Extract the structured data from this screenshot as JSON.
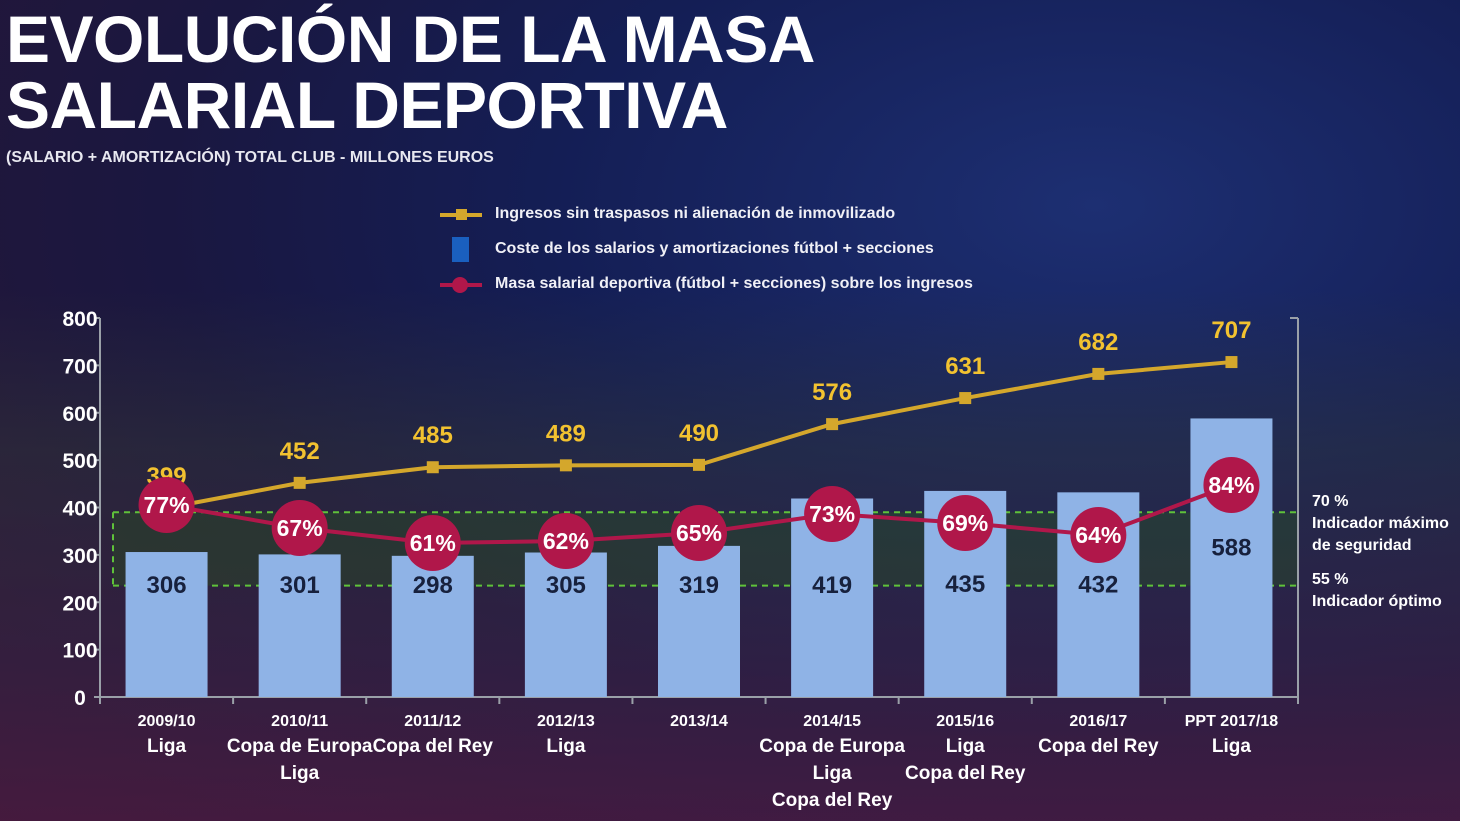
{
  "title": {
    "line1": "EVOLUCIÓN DE LA MASA",
    "line2": "SALARIAL DEPORTIVA"
  },
  "subtitle": "(SALARIO + AMORTIZACIÓN) TOTAL CLUB  - MILLONES EUROS",
  "legend": [
    "Ingresos sin traspasos ni alienación de inmovilizado",
    "Coste de los salarios y amortizaciones fútbol + secciones",
    "Masa salarial deportiva (fútbol + secciones) sobre los ingresos"
  ],
  "colors": {
    "income": "#d4a72c",
    "bars": "#8fb3e6",
    "ratio": "#b0174a",
    "band": "#3a8a2a"
  },
  "side": {
    "top_pct": "70 %",
    "top_line1": "Indicador máximo",
    "top_line2": "de seguridad",
    "bottom_pct": "55 %",
    "bottom_label": "Indicador óptimo"
  },
  "chart_data": {
    "type": "bar",
    "title": "EVOLUCIÓN DE LA MASA SALARIAL DEPORTIVA",
    "ylim": [
      0,
      800
    ],
    "yticks": [
      "0",
      "100",
      "200",
      "300",
      "400",
      "500",
      "600",
      "700",
      "800"
    ],
    "categories": [
      "2009/10",
      "2010/11",
      "2011/12",
      "2012/13",
      "2013/14",
      "2014/15",
      "2015/16",
      "2016/17",
      "PPT 2017/18"
    ],
    "trophies": [
      [
        "Liga"
      ],
      [
        "Copa de Europa",
        "Liga"
      ],
      [
        "Copa del Rey"
      ],
      [
        "Liga"
      ],
      [],
      [
        "Copa de Europa",
        "Liga",
        "Copa del Rey"
      ],
      [
        "Liga",
        "Copa del Rey"
      ],
      [
        "Copa del Rey"
      ],
      [
        "Liga"
      ]
    ],
    "series": [
      {
        "name": "Coste de los salarios y amortizaciones fútbol + secciones",
        "type": "bar",
        "values": [
          306,
          301,
          298,
          305,
          319,
          419,
          435,
          432,
          588
        ]
      },
      {
        "name": "Ingresos sin traspasos ni alienación de inmovilizado",
        "type": "line",
        "values": [
          399,
          452,
          485,
          489,
          490,
          576,
          631,
          682,
          707
        ]
      },
      {
        "name": "Masa salarial deportiva (fútbol + secciones) sobre los ingresos",
        "type": "line",
        "unit": "%",
        "values": [
          77,
          67,
          61,
          62,
          65,
          73,
          69,
          64,
          84
        ]
      }
    ],
    "band": {
      "from": 235,
      "to": 390,
      "labels": [
        "55 %",
        "70 %"
      ]
    }
  }
}
